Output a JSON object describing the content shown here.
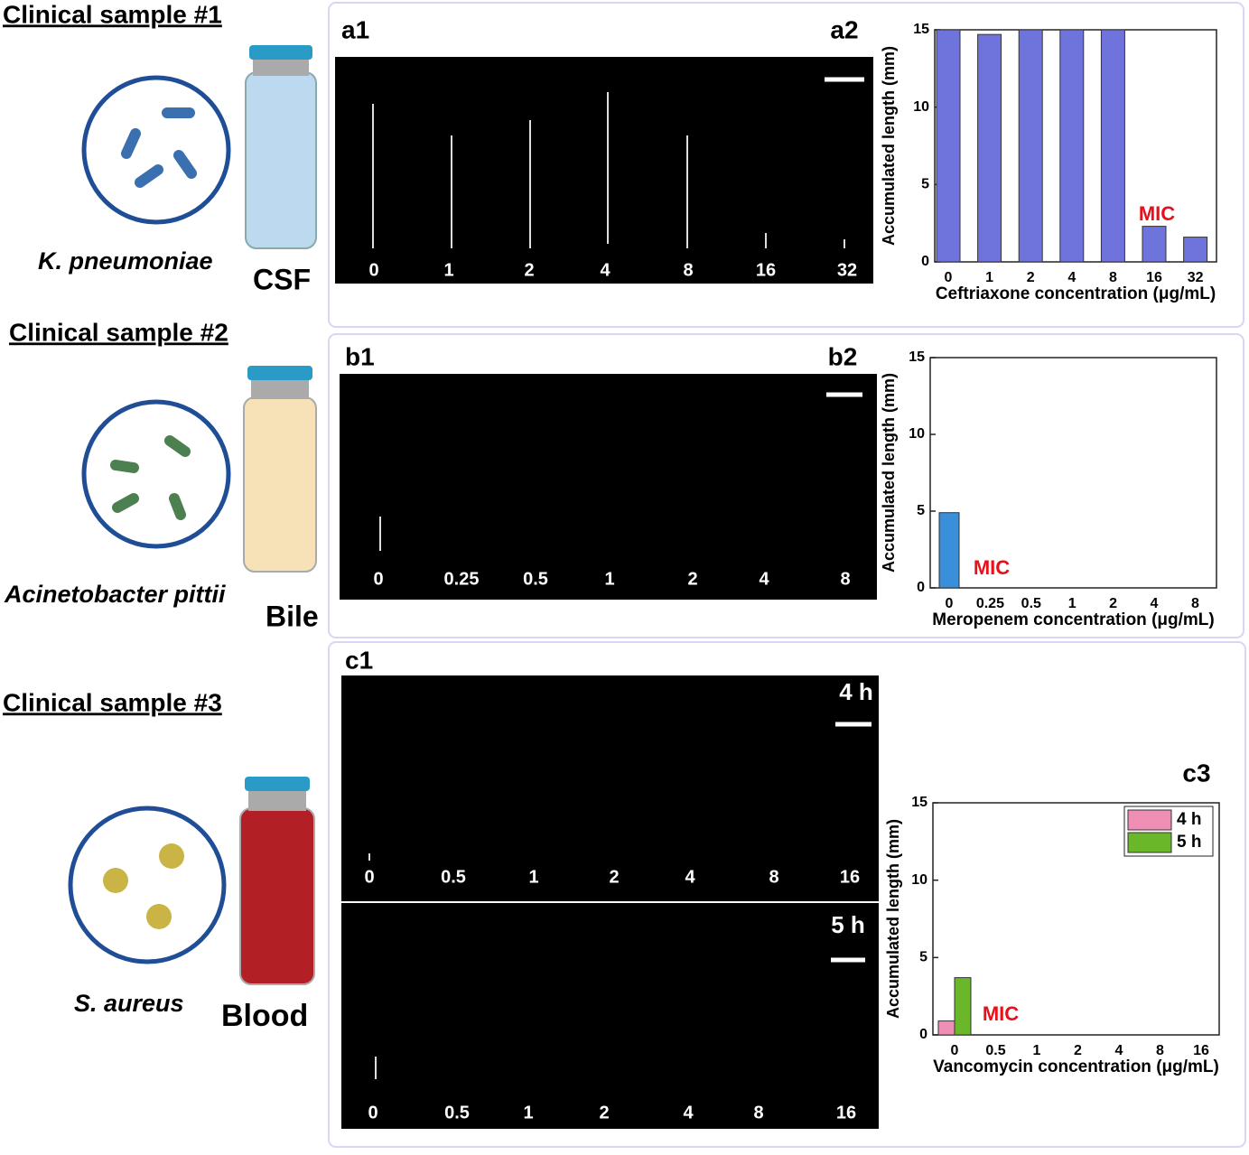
{
  "figure": {
    "samples": [
      {
        "title": "Clinical sample #1",
        "organism": "K. pneumoniae",
        "specimen": "CSF"
      },
      {
        "title": "Clinical sample #2",
        "organism": "Acinetobacter pittii",
        "specimen": "Bile"
      },
      {
        "title": "Clinical sample #3",
        "organism": "S. aureus",
        "specimen": "Blood"
      }
    ],
    "images": [
      {
        "panel_label": "a1",
        "labels": [
          "0",
          "1",
          "2",
          "4",
          "8",
          "16",
          "32"
        ]
      },
      {
        "panel_label": "b1",
        "labels": [
          "0",
          "0.25",
          "0.5",
          "1",
          "2",
          "4",
          "8"
        ]
      },
      {
        "panel_label": "c1",
        "time": "4 h",
        "labels": [
          "0",
          "0.5",
          "1",
          "2",
          "4",
          "8",
          "16"
        ]
      },
      {
        "time": "5 h",
        "labels": [
          "0",
          "0.5",
          "1",
          "2",
          "4",
          "8",
          "16"
        ]
      }
    ]
  },
  "chart_data": [
    {
      "type": "bar",
      "panel_label": "a2",
      "xlabel": "Ceftriaxone concentration (μg/mL)",
      "ylabel": "Accumulated length (mm)",
      "categories": [
        "0",
        "1",
        "2",
        "4",
        "8",
        "16",
        "32"
      ],
      "series": [
        {
          "name": null,
          "color": "#6f74dc",
          "values": [
            15,
            14.7,
            15,
            15,
            15,
            2.3,
            1.6
          ]
        }
      ],
      "ylim": [
        0,
        15
      ],
      "yticks": [
        0,
        5,
        10,
        15
      ],
      "annotation": "MIC"
    },
    {
      "type": "bar",
      "panel_label": "b2",
      "xlabel": "Meropenem concentration (μg/mL)",
      "ylabel": "Accumulated length (mm)",
      "categories": [
        "0",
        "0.25",
        "0.5",
        "1",
        "2",
        "4",
        "8"
      ],
      "series": [
        {
          "name": null,
          "color": "#3a8fdb",
          "values": [
            4.9,
            0,
            0,
            0,
            0,
            0,
            0
          ]
        }
      ],
      "ylim": [
        0,
        15
      ],
      "yticks": [
        0,
        5,
        10,
        15
      ],
      "annotation": "MIC"
    },
    {
      "type": "bar",
      "panel_label": "c3",
      "xlabel": "Vancomycin concentration (μg/mL)",
      "ylabel": "Accumulated length (mm)",
      "categories": [
        "0",
        "0.5",
        "1",
        "2",
        "4",
        "8",
        "16"
      ],
      "series": [
        {
          "name": "4 h",
          "color": "#f08fb6",
          "values": [
            0.9,
            0,
            0,
            0,
            0,
            0,
            0
          ]
        },
        {
          "name": "5 h",
          "color": "#6ab82a",
          "values": [
            3.7,
            0,
            0,
            0,
            0,
            0,
            0
          ]
        }
      ],
      "ylim": [
        0,
        15
      ],
      "yticks": [
        0,
        5,
        10,
        15
      ],
      "annotation": "MIC",
      "legend": "upper right"
    }
  ]
}
